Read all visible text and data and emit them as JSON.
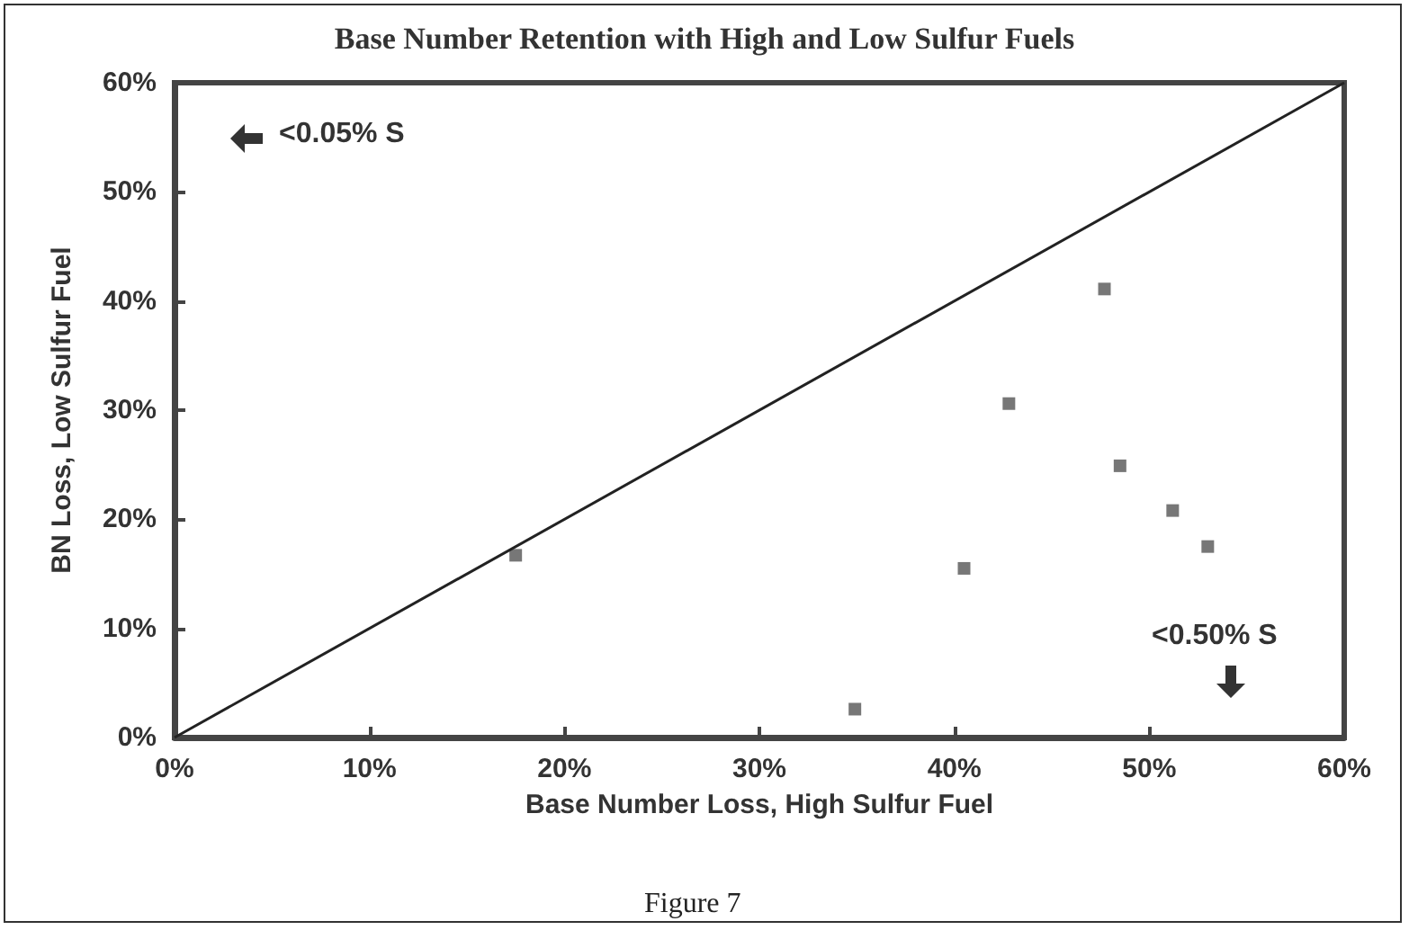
{
  "chart_data": {
    "type": "scatter",
    "title": "Base Number Retention with High and Low Sulfur Fuels",
    "xlabel": "Base Number Loss, High Sulfur Fuel",
    "ylabel": "BN Loss, Low Sulfur Fuel",
    "xlim": [
      0,
      60
    ],
    "ylim": [
      0,
      60
    ],
    "xticks": [
      {
        "value": 0,
        "label": "0%"
      },
      {
        "value": 10,
        "label": "10%"
      },
      {
        "value": 20,
        "label": "20%"
      },
      {
        "value": 30,
        "label": "30%"
      },
      {
        "value": 40,
        "label": "40%"
      },
      {
        "value": 50,
        "label": "50%"
      },
      {
        "value": 60,
        "label": "60%"
      }
    ],
    "yticks": [
      {
        "value": 0,
        "label": "0%"
      },
      {
        "value": 10,
        "label": "10%"
      },
      {
        "value": 20,
        "label": "20%"
      },
      {
        "value": 30,
        "label": "30%"
      },
      {
        "value": 40,
        "label": "40%"
      },
      {
        "value": 50,
        "label": "50%"
      },
      {
        "value": 60,
        "label": "60%"
      }
    ],
    "grid": false,
    "marker": "square",
    "series": [
      {
        "color": "#555555",
        "x": [
          17.5,
          34.9,
          40.5,
          42.8,
          47.7,
          48.5,
          51.2,
          53.0
        ],
        "values": [
          16.7,
          2.6,
          15.5,
          30.6,
          41.1,
          24.9,
          20.8,
          17.5
        ]
      },
      {
        "type": "line",
        "color": "#222222",
        "marker": "none",
        "x": [
          0,
          60
        ],
        "values": [
          0,
          60
        ]
      }
    ],
    "annotations": [
      "<0.05% S",
      "<0.50% S",
      "Figure 7"
    ]
  }
}
